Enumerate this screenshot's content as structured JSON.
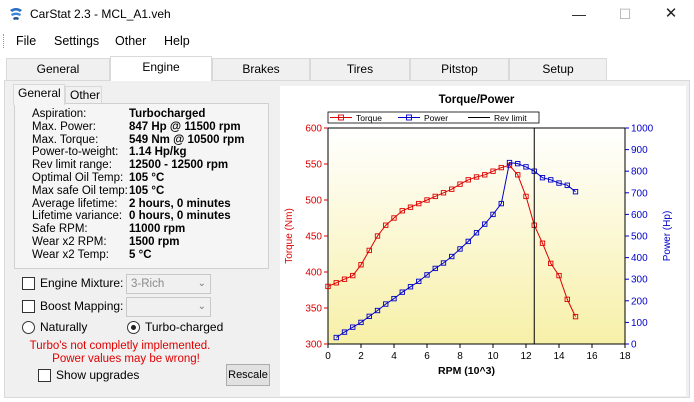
{
  "window": {
    "title": "CarStat 2.3 - MCL_A1.veh"
  },
  "menu": [
    "File",
    "Settings",
    "Other",
    "Help"
  ],
  "tabs": [
    "General",
    "Engine",
    "Brakes",
    "Tires",
    "Pitstop",
    "Setup"
  ],
  "active_tab": "Engine",
  "subtabs": [
    "General",
    "Other"
  ],
  "engine_info": [
    {
      "key": "Aspiration:",
      "value": "Turbocharged"
    },
    {
      "key": "Max. Power:",
      "value": "847 Hp @ 11500 rpm"
    },
    {
      "key": "Max. Torque:",
      "value": "549 Nm @ 10500 rpm"
    },
    {
      "key": "Power-to-weight:",
      "value": "1.14 Hp/kg"
    },
    {
      "key": "Rev limit range:",
      "value": "12500 - 12500 rpm"
    },
    {
      "key": "Optimal Oil Temp:",
      "value": "105 °C"
    },
    {
      "key": "Max safe Oil temp:",
      "value": "105 °C"
    },
    {
      "key": "Average lifetime:",
      "value": "2 hours, 0 minutes"
    },
    {
      "key": "Lifetime variance:",
      "value": "0 hours, 0 minutes"
    },
    {
      "key": "Safe RPM:",
      "value": "11000 rpm"
    },
    {
      "key": "Wear x2 RPM:",
      "value": "1500 rpm"
    },
    {
      "key": "Wear x2 Temp:",
      "value": "5 °C"
    }
  ],
  "controls": {
    "engine_mixture_label": "Engine Mixture:",
    "engine_mixture_value": "3-Rich",
    "boost_mapping_label": "Boost Mapping:",
    "boost_mapping_value": "",
    "radio_naturally": "Naturally",
    "radio_turbo": "Turbo-charged",
    "warning_line1": "Turbo's not completly implemented.",
    "warning_line2": "Power values may be wrong!",
    "show_upgrades_label": "Show upgrades",
    "rescale_label": "Rescale"
  },
  "chart_data": {
    "type": "line",
    "title": "Torque/Power",
    "xlabel": "RPM (10^3)",
    "ylabel_left": "Torque (Nm)",
    "ylabel_right": "Power (Hp)",
    "xlim": [
      0,
      18
    ],
    "ylim_left": [
      300,
      600
    ],
    "ylim_right": [
      0,
      1000
    ],
    "x_ticks": [
      0,
      2,
      4,
      6,
      8,
      10,
      12,
      14,
      16,
      18
    ],
    "y_left_ticks": [
      300,
      350,
      400,
      450,
      500,
      550,
      600
    ],
    "y_right_ticks": [
      0,
      100,
      200,
      300,
      400,
      500,
      600,
      700,
      800,
      900,
      1000
    ],
    "legend_position": "top",
    "colors": {
      "torque": "#dd0000",
      "power": "#0000cc",
      "rev_limit": "#000000",
      "bg_top": "#ffffff",
      "bg_bottom": "#f7f0a8"
    },
    "series": [
      {
        "name": "Torque",
        "axis": "left",
        "x": [
          0,
          0.5,
          1,
          1.5,
          2,
          2.5,
          3,
          3.5,
          4,
          4.5,
          5,
          5.5,
          6,
          6.5,
          7,
          7.5,
          8,
          8.5,
          9,
          9.5,
          10,
          10.5,
          11,
          11.5,
          12,
          12.5,
          13,
          13.5,
          14,
          14.5,
          15
        ],
        "values": [
          380,
          385,
          390,
          395,
          410,
          430,
          450,
          465,
          475,
          485,
          490,
          495,
          500,
          505,
          510,
          515,
          522,
          528,
          532,
          535,
          540,
          545,
          548,
          535,
          505,
          465,
          440,
          412,
          395,
          362,
          338
        ]
      },
      {
        "name": "Power",
        "axis": "right",
        "x": [
          0.5,
          1,
          1.5,
          2,
          2.5,
          3,
          3.5,
          4,
          4.5,
          5,
          5.5,
          6,
          6.5,
          7,
          7.5,
          8,
          8.5,
          9,
          9.5,
          10,
          10.5,
          11,
          11.5,
          12,
          12.5,
          13,
          13.5,
          14,
          14.5,
          15
        ],
        "values": [
          30,
          55,
          78,
          100,
          128,
          155,
          185,
          210,
          240,
          265,
          290,
          320,
          350,
          375,
          405,
          440,
          475,
          515,
          555,
          600,
          650,
          840,
          835,
          820,
          800,
          770,
          760,
          745,
          735,
          705
        ]
      }
    ],
    "rev_limit": {
      "name": "Rev limit",
      "x": 12.5
    }
  }
}
